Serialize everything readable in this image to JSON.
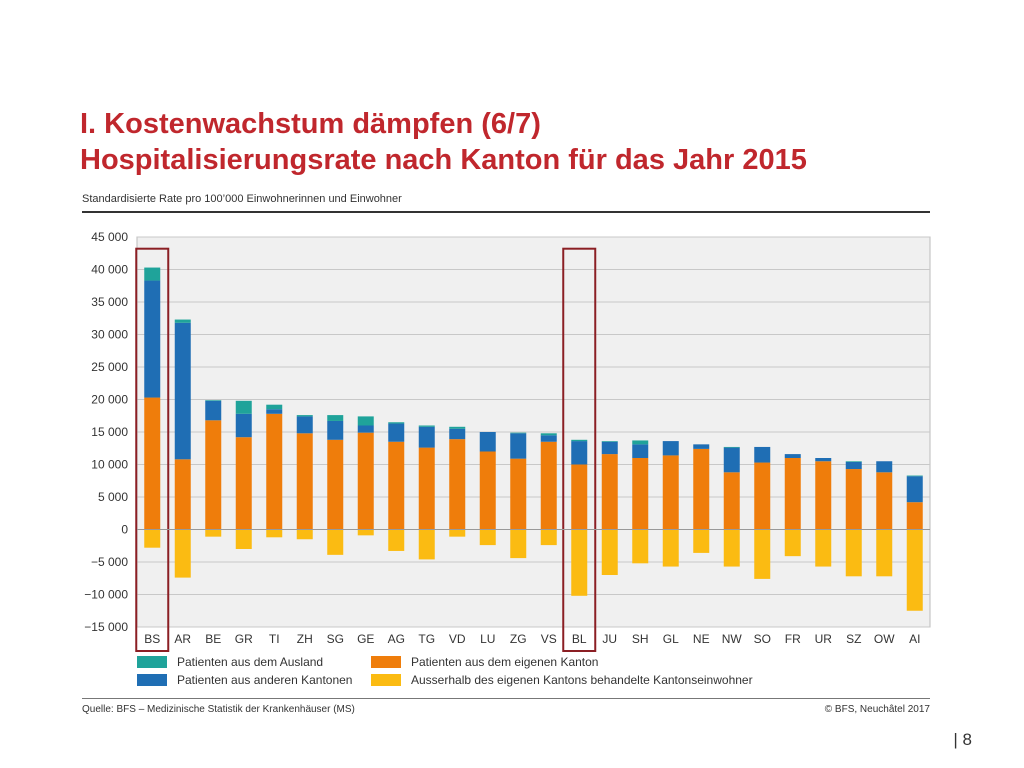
{
  "header": {
    "title_line1": "I. Kostenwachstum dämpfen (6/7)",
    "title_line2": "Hospitalisierungsrate nach Kanton für das Jahr 2015",
    "subtitle": "Standardisierte Rate pro 100’000 Einwohnerinnen und Einwohner"
  },
  "footer": {
    "source": "Quelle: BFS – Medizinische Statistik der Krankenhäuser (MS)",
    "copyright": "© BFS, Neuchâtel 2017",
    "page_number": "| 8"
  },
  "colors": {
    "ausland": "#1fa39a",
    "andere": "#1f6eb4",
    "eigen": "#ef7d0b",
    "ausserhalb": "#fbbb12",
    "highlight": "#8b1f24",
    "plot_bg": "#f0f0f0"
  },
  "chart_data": {
    "type": "bar",
    "stacked": true,
    "title": "Hospitalisierungsrate nach Kanton für das Jahr 2015",
    "ylabel": "Standardisierte Rate pro 100’000 Einwohnerinnen und Einwohner",
    "ylim": [
      -15000,
      45000
    ],
    "yticks": [
      45000,
      40000,
      35000,
      30000,
      25000,
      20000,
      15000,
      10000,
      5000,
      0,
      -5000,
      -10000,
      -15000
    ],
    "ytick_labels": [
      "45 000",
      "40 000",
      "35 000",
      "30 000",
      "25 000",
      "20 000",
      "15 000",
      "10 000",
      "5 000",
      "0",
      "−5 000",
      "−10 000",
      "−15 000"
    ],
    "grid": true,
    "categories": [
      "BS",
      "AR",
      "BE",
      "GR",
      "TI",
      "ZH",
      "SG",
      "GE",
      "AG",
      "TG",
      "VD",
      "LU",
      "ZG",
      "VS",
      "BL",
      "JU",
      "SH",
      "GL",
      "NE",
      "NW",
      "SO",
      "FR",
      "UR",
      "SZ",
      "OW",
      "AI"
    ],
    "highlighted": [
      "BS",
      "BL"
    ],
    "series": [
      {
        "name": "Patienten aus dem eigenen Kanton",
        "key": "eigen",
        "values": [
          20300,
          10800,
          16800,
          14200,
          17800,
          14800,
          13800,
          14900,
          13500,
          12600,
          13900,
          12000,
          10900,
          13500,
          10000,
          11600,
          11000,
          11400,
          12400,
          8800,
          10300,
          11000,
          10500,
          9300,
          8800,
          4200
        ]
      },
      {
        "name": "Patienten aus anderen Kantonen",
        "key": "andere",
        "values": [
          18000,
          21000,
          3000,
          3600,
          700,
          2600,
          2900,
          1100,
          2800,
          3200,
          1600,
          3000,
          3900,
          1000,
          3600,
          1900,
          2100,
          2200,
          700,
          3800,
          2400,
          600,
          500,
          1100,
          1700,
          4000
        ]
      },
      {
        "name": "Patienten aus dem Ausland",
        "key": "ausland",
        "values": [
          2000,
          500,
          100,
          2000,
          700,
          200,
          900,
          1400,
          200,
          200,
          300,
          0,
          100,
          300,
          200,
          100,
          600,
          0,
          0,
          100,
          0,
          0,
          0,
          100,
          0,
          100
        ]
      },
      {
        "name": "Ausserhalb des eigenen Kantons behandelte Kantonseinwohner",
        "key": "ausserhalb",
        "values": [
          -2800,
          -7400,
          -1100,
          -3000,
          -1200,
          -1500,
          -3900,
          -900,
          -3300,
          -4600,
          -1100,
          -2400,
          -4400,
          -2400,
          -10200,
          -7000,
          -5200,
          -5700,
          -3600,
          -5700,
          -7600,
          -4100,
          -5700,
          -7200,
          -7200,
          -12500
        ]
      }
    ],
    "legend": [
      {
        "label": "Patienten aus dem Ausland",
        "key": "ausland"
      },
      {
        "label": "Patienten aus dem eigenen Kanton",
        "key": "eigen"
      },
      {
        "label": "Patienten aus anderen Kantonen",
        "key": "andere"
      },
      {
        "label": "Ausserhalb des eigenen Kantons behandelte Kantonseinwohner",
        "key": "ausserhalb"
      }
    ]
  }
}
